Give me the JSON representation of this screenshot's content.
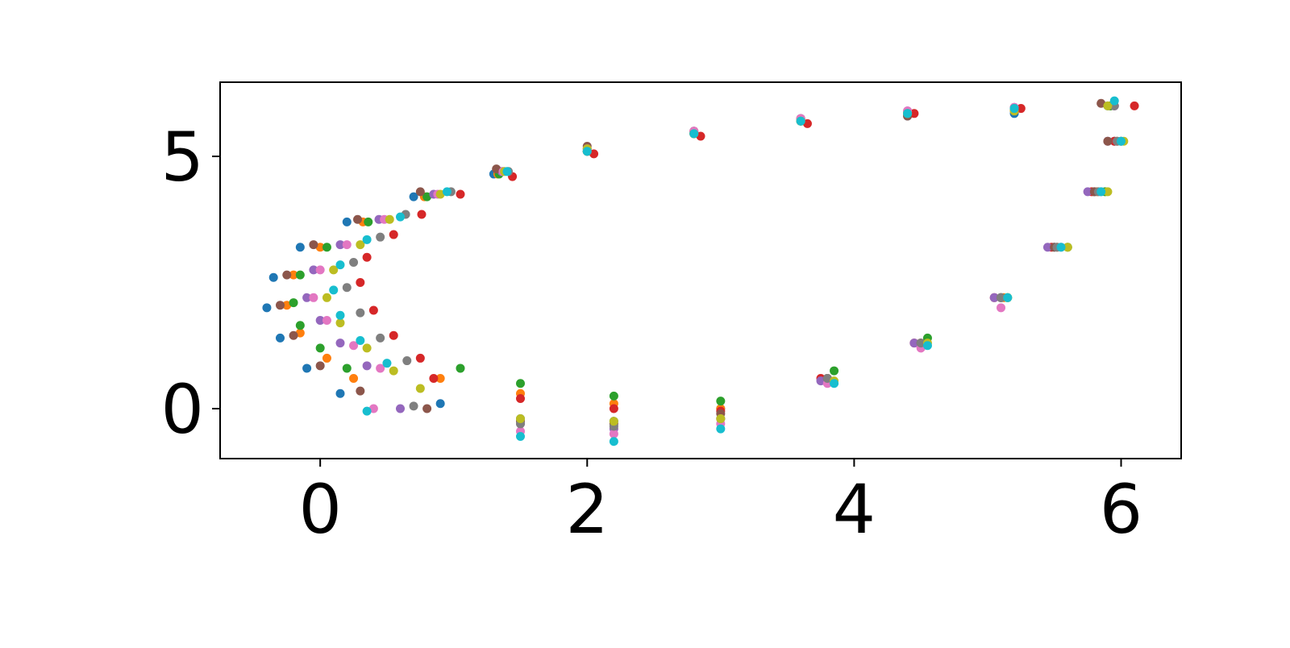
{
  "chart_data": {
    "type": "scatter",
    "xlim": [
      -0.75,
      6.45
    ],
    "ylim": [
      -0.99,
      6.47
    ],
    "xticks": [
      0,
      2,
      4,
      6
    ],
    "yticks": [
      0,
      5
    ],
    "grid": false,
    "series": [
      {
        "color": "#1f77b4",
        "x": [
          0.15,
          -0.1,
          -0.3,
          -0.4,
          -0.35,
          -0.15,
          0.2,
          0.7,
          1.3,
          2.0,
          2.8,
          3.6,
          4.4,
          5.2,
          5.9,
          5.95,
          5.8,
          5.5,
          5.1,
          4.5,
          3.8,
          3.0,
          2.2,
          1.5,
          0.9
        ],
        "values": [
          0.3,
          0.8,
          1.4,
          2.0,
          2.6,
          3.2,
          3.7,
          4.2,
          4.65,
          5.1,
          5.45,
          5.7,
          5.8,
          5.85,
          6.0,
          5.3,
          4.3,
          3.2,
          2.2,
          1.3,
          0.6,
          0.0,
          -0.25,
          -0.2,
          0.1
        ]
      },
      {
        "color": "#ff7f0e",
        "x": [
          0.25,
          0.05,
          -0.15,
          -0.25,
          -0.2,
          0.0,
          0.32,
          0.78,
          1.33,
          2.0,
          2.8,
          3.6,
          4.4,
          5.2,
          5.92,
          5.97,
          5.82,
          5.52,
          5.12,
          4.5,
          3.8,
          3.0,
          2.2,
          1.5,
          0.9
        ],
        "values": [
          0.6,
          1.0,
          1.5,
          2.05,
          2.65,
          3.2,
          3.7,
          4.2,
          4.65,
          5.1,
          5.45,
          5.7,
          5.85,
          5.95,
          6.0,
          5.3,
          4.3,
          3.2,
          2.2,
          1.3,
          0.6,
          0.0,
          0.1,
          0.3,
          0.6
        ]
      },
      {
        "color": "#2ca02c",
        "x": [
          0.2,
          0.0,
          -0.15,
          -0.2,
          -0.15,
          0.05,
          0.36,
          0.8,
          1.34,
          2.0,
          2.8,
          3.6,
          4.4,
          5.2,
          5.92,
          6.0,
          5.88,
          5.6,
          5.15,
          4.55,
          3.85,
          3.0,
          2.2,
          1.5,
          1.05
        ],
        "values": [
          0.8,
          1.2,
          1.65,
          2.1,
          2.65,
          3.2,
          3.7,
          4.2,
          4.65,
          5.1,
          5.45,
          5.7,
          5.85,
          5.95,
          6.0,
          5.3,
          4.3,
          3.2,
          2.2,
          1.4,
          0.75,
          0.15,
          0.25,
          0.5,
          0.8
        ]
      },
      {
        "color": "#d62728",
        "x": [
          0.75,
          0.55,
          0.4,
          0.3,
          0.35,
          0.55,
          0.76,
          1.05,
          1.44,
          2.05,
          2.85,
          3.65,
          4.45,
          5.25,
          6.1,
          5.95,
          5.78,
          5.48,
          5.05,
          4.45,
          3.75,
          3.0,
          2.2,
          1.5,
          0.85
        ],
        "values": [
          1.0,
          1.45,
          1.95,
          2.5,
          3.0,
          3.45,
          3.85,
          4.25,
          4.6,
          5.05,
          5.4,
          5.65,
          5.85,
          5.95,
          6.0,
          5.3,
          4.3,
          3.2,
          2.2,
          1.3,
          0.6,
          -0.05,
          0.0,
          0.2,
          0.6
        ]
      },
      {
        "color": "#9467bd",
        "x": [
          0.35,
          0.15,
          0.0,
          -0.1,
          -0.05,
          0.15,
          0.44,
          0.85,
          1.36,
          2.0,
          2.8,
          3.6,
          4.4,
          5.2,
          5.95,
          5.9,
          5.75,
          5.45,
          5.05,
          4.45,
          3.75,
          3.0,
          2.2,
          1.5,
          0.6
        ],
        "values": [
          0.85,
          1.3,
          1.75,
          2.2,
          2.75,
          3.25,
          3.75,
          4.25,
          4.7,
          5.15,
          5.5,
          5.75,
          5.9,
          5.97,
          6.0,
          5.3,
          4.3,
          3.2,
          2.2,
          1.3,
          0.55,
          -0.2,
          -0.4,
          -0.3,
          0.0
        ]
      },
      {
        "color": "#8c564b",
        "x": [
          0.3,
          0.0,
          -0.2,
          -0.3,
          -0.25,
          -0.05,
          0.28,
          0.75,
          1.32,
          2.0,
          2.8,
          3.6,
          4.4,
          5.2,
          5.85,
          5.9,
          5.8,
          5.5,
          5.1,
          4.5,
          3.8,
          3.0,
          2.2,
          1.5,
          0.8
        ],
        "values": [
          0.35,
          0.85,
          1.45,
          2.05,
          2.65,
          3.25,
          3.75,
          4.3,
          4.75,
          5.2,
          5.5,
          5.75,
          5.8,
          5.9,
          6.05,
          5.3,
          4.3,
          3.2,
          2.2,
          1.3,
          0.6,
          -0.1,
          -0.3,
          -0.25,
          0.0
        ]
      },
      {
        "color": "#e377c2",
        "x": [
          0.45,
          0.25,
          0.05,
          -0.05,
          0.0,
          0.2,
          0.48,
          0.88,
          1.37,
          2.0,
          2.8,
          3.6,
          4.4,
          5.2,
          5.95,
          6.0,
          5.85,
          5.55,
          5.1,
          4.5,
          3.8,
          3.0,
          2.2,
          1.5,
          0.4
        ],
        "values": [
          0.8,
          1.25,
          1.75,
          2.2,
          2.75,
          3.25,
          3.75,
          4.25,
          4.7,
          5.15,
          5.5,
          5.75,
          5.9,
          5.97,
          6.0,
          5.3,
          4.3,
          3.2,
          2.0,
          1.2,
          0.5,
          -0.3,
          -0.5,
          -0.45,
          0.0
        ]
      },
      {
        "color": "#7f7f7f",
        "x": [
          0.65,
          0.45,
          0.3,
          0.2,
          0.25,
          0.45,
          0.64,
          0.98,
          1.41,
          2.0,
          2.8,
          3.6,
          4.4,
          5.2,
          5.95,
          5.97,
          5.83,
          5.52,
          5.1,
          4.5,
          3.8,
          3.0,
          2.2,
          1.5,
          0.7
        ],
        "values": [
          0.95,
          1.4,
          1.9,
          2.4,
          2.9,
          3.4,
          3.85,
          4.3,
          4.7,
          5.1,
          5.45,
          5.7,
          5.85,
          5.95,
          6.0,
          5.3,
          4.3,
          3.2,
          2.2,
          1.3,
          0.6,
          -0.2,
          -0.35,
          -0.3,
          0.05
        ]
      },
      {
        "color": "#bcbd22",
        "x": [
          0.55,
          0.35,
          0.15,
          0.05,
          0.1,
          0.3,
          0.52,
          0.9,
          1.38,
          2.0,
          2.8,
          3.6,
          4.4,
          5.2,
          5.9,
          6.02,
          5.9,
          5.6,
          5.15,
          4.55,
          3.85,
          3.0,
          2.2,
          1.5,
          0.75
        ],
        "values": [
          0.75,
          1.2,
          1.7,
          2.2,
          2.75,
          3.25,
          3.75,
          4.25,
          4.7,
          5.15,
          5.45,
          5.7,
          5.85,
          5.9,
          6.0,
          5.3,
          4.3,
          3.2,
          2.2,
          1.3,
          0.55,
          -0.2,
          -0.25,
          -0.2,
          0.4
        ]
      },
      {
        "color": "#17becf",
        "x": [
          0.5,
          0.3,
          0.15,
          0.1,
          0.15,
          0.35,
          0.6,
          0.95,
          1.4,
          2.0,
          2.8,
          3.6,
          4.4,
          5.2,
          5.95,
          6.0,
          5.85,
          5.55,
          5.15,
          4.55,
          3.85,
          3.0,
          2.2,
          1.5,
          0.35
        ],
        "values": [
          0.9,
          1.35,
          1.85,
          2.35,
          2.85,
          3.35,
          3.8,
          4.3,
          4.7,
          5.1,
          5.45,
          5.7,
          5.85,
          5.95,
          6.1,
          5.3,
          4.3,
          3.2,
          2.2,
          1.25,
          0.5,
          -0.4,
          -0.65,
          -0.55,
          -0.05
        ]
      }
    ]
  }
}
